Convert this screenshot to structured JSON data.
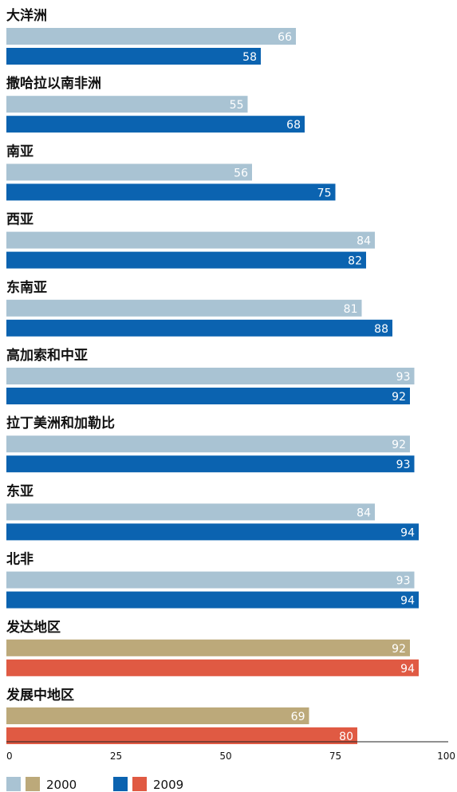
{
  "chart_data": {
    "type": "bar",
    "orientation": "horizontal",
    "xlim": [
      0,
      100
    ],
    "x_ticks": [
      "0",
      "25",
      "50",
      "75",
      "100"
    ],
    "categories": [
      "大洋洲",
      "撒哈拉以南非洲",
      "南亚",
      "西亚",
      "东南亚",
      "高加索和中亚",
      "拉丁美洲和加勒比",
      "东亚",
      "北非",
      "发达地区",
      "发展中地区"
    ],
    "series": [
      {
        "name": "2000",
        "values": [
          66,
          55,
          56,
          84,
          81,
          93,
          92,
          84,
          93,
          92,
          69
        ]
      },
      {
        "name": "2009",
        "values": [
          58,
          68,
          75,
          82,
          88,
          92,
          93,
          94,
          94,
          94,
          80
        ]
      }
    ],
    "colors": {
      "2000": [
        "#a9c3d3",
        "#a9c3d3",
        "#a9c3d3",
        "#a9c3d3",
        "#a9c3d3",
        "#a9c3d3",
        "#a9c3d3",
        "#a9c3d3",
        "#a9c3d3",
        "#bca97a",
        "#bca97a"
      ],
      "2009": [
        "#0b63b0",
        "#0b63b0",
        "#0b63b0",
        "#0b63b0",
        "#0b63b0",
        "#0b63b0",
        "#0b63b0",
        "#0b63b0",
        "#0b63b0",
        "#e05a43",
        "#e05a43"
      ]
    },
    "legend": {
      "placement": "bottom-left",
      "entries": [
        {
          "label": "2000",
          "swatches": [
            "#a9c3d3",
            "#bca97a"
          ]
        },
        {
          "label": "2009",
          "swatches": [
            "#0b63b0",
            "#e05a43"
          ]
        }
      ]
    },
    "grid": false
  }
}
